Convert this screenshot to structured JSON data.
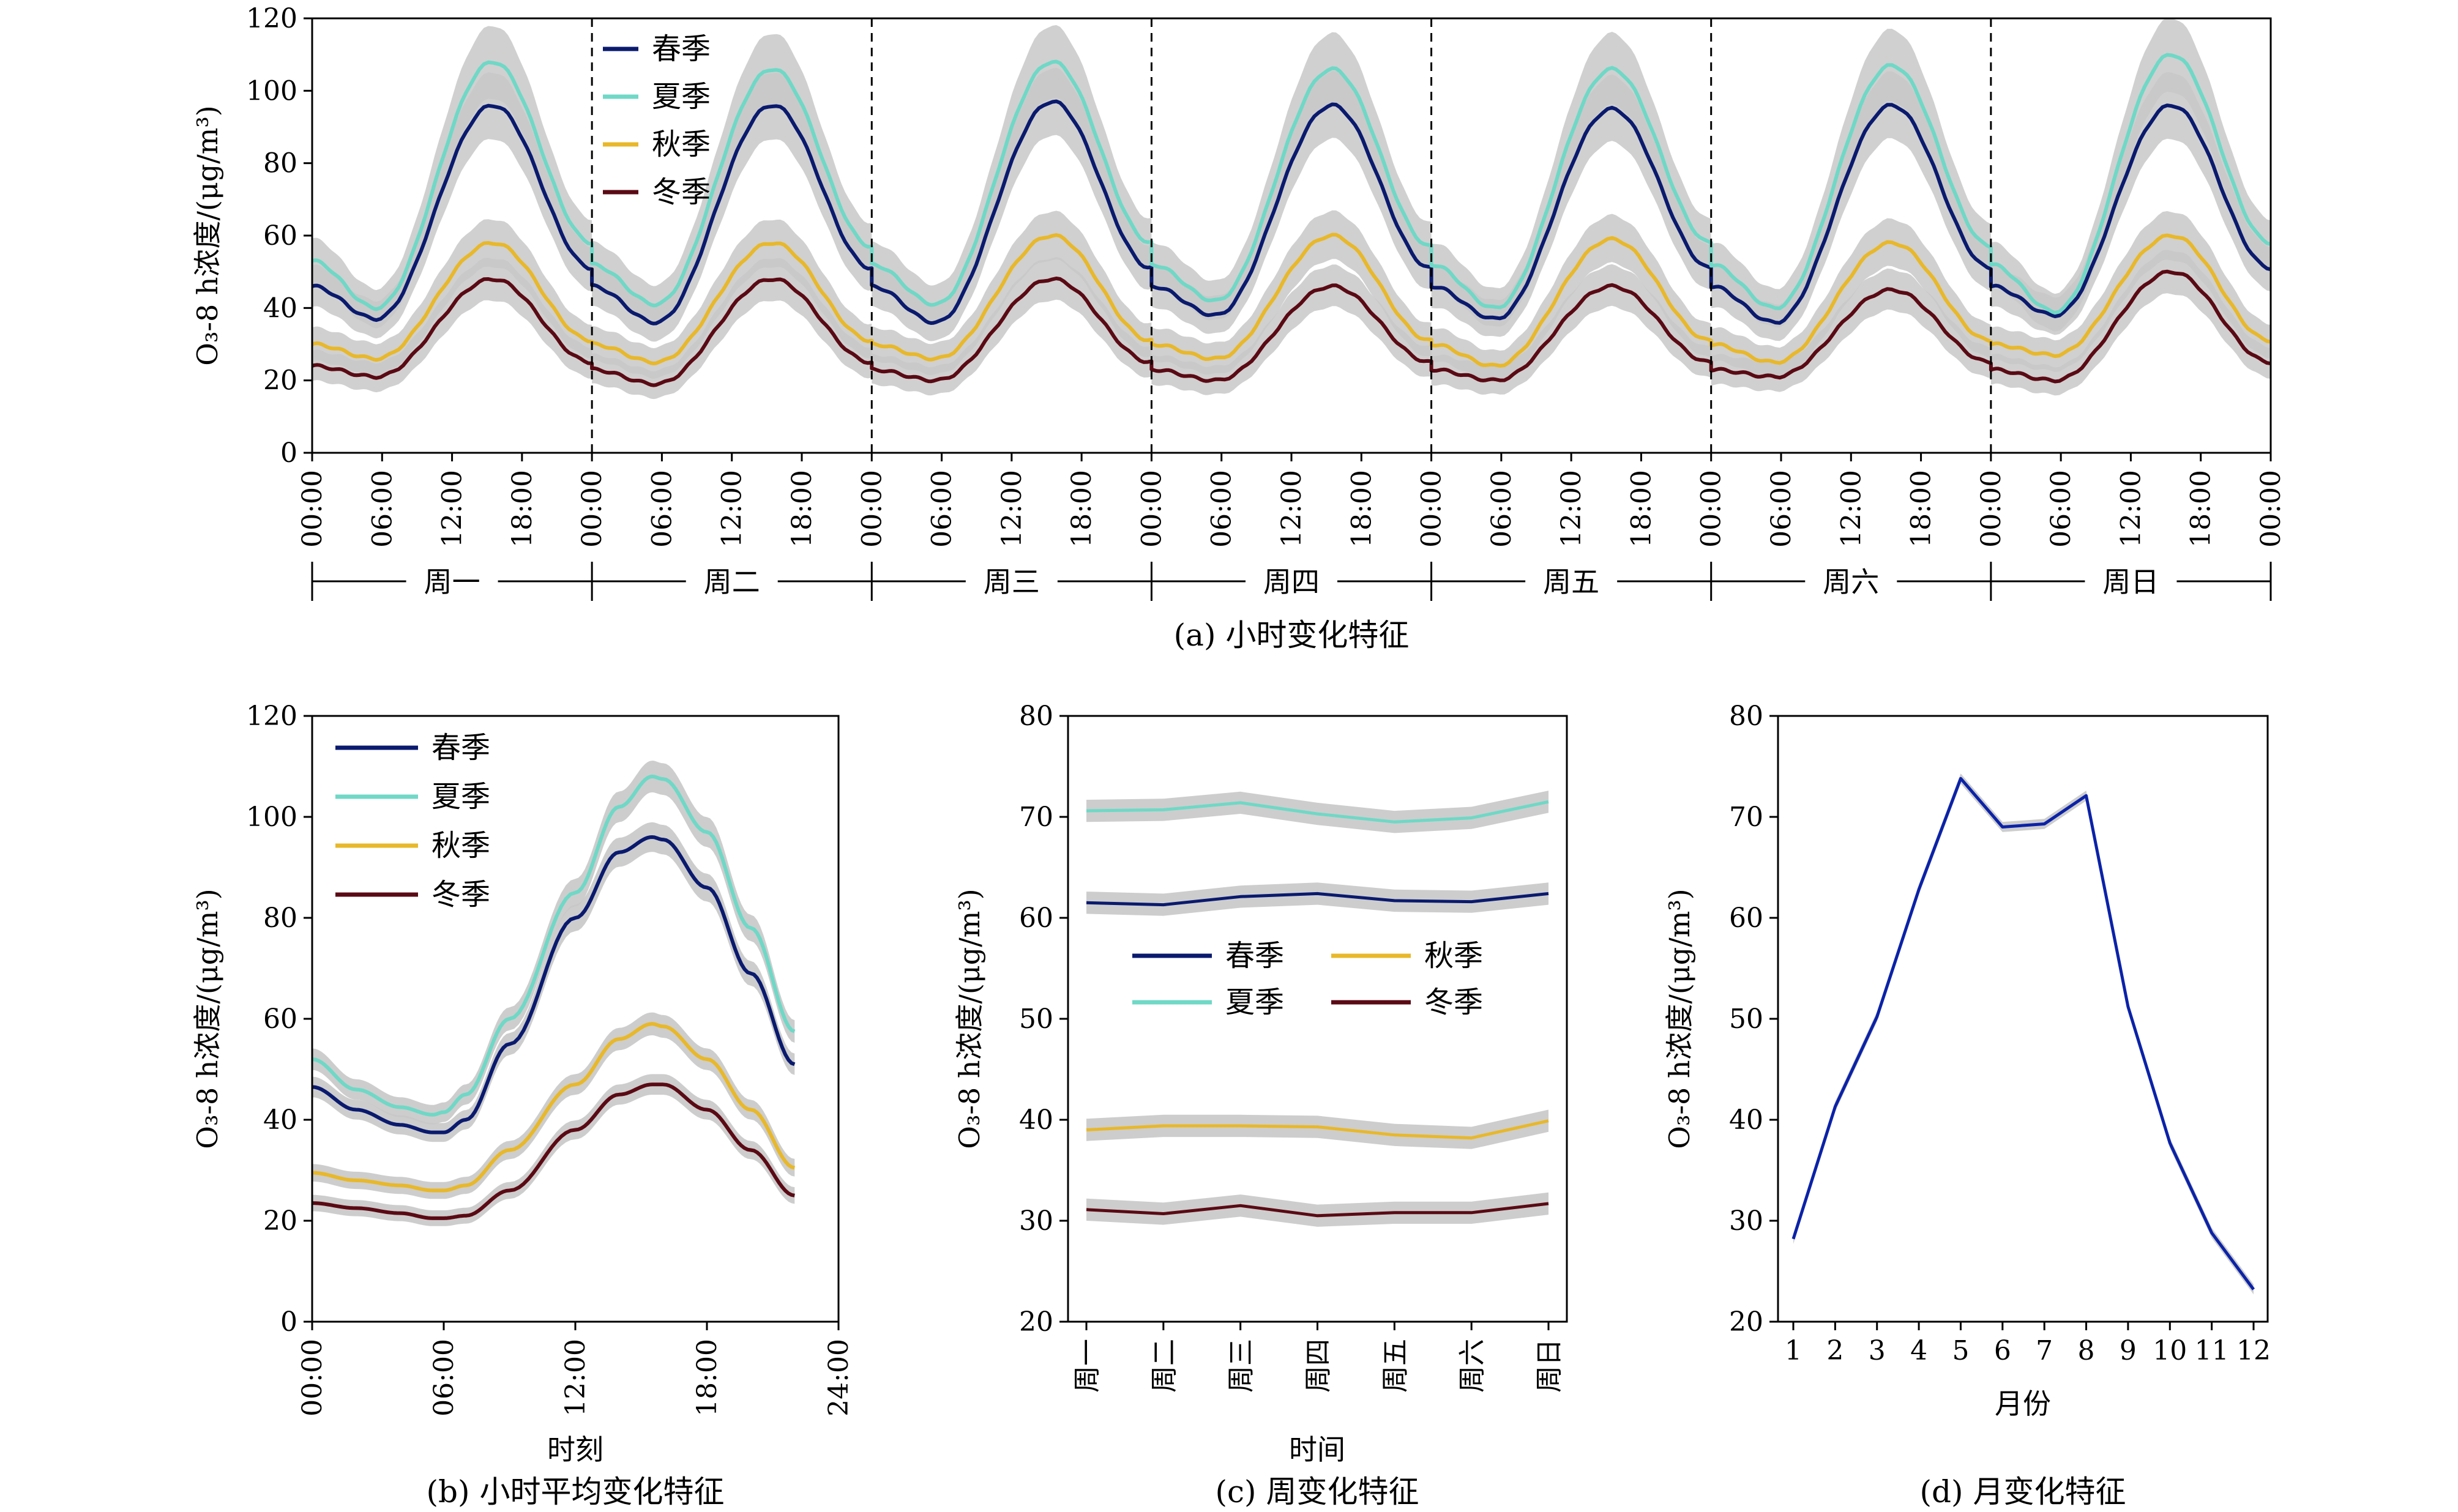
{
  "colors": {
    "spring": "#0a1a6e",
    "summer": "#6fd8c6",
    "autumn": "#e8b82a",
    "winter": "#5a0a14",
    "band": "#c8c8c8",
    "monthly": "#0b22a8"
  },
  "chart_data": [
    {
      "type": "line",
      "caption": "(a) 小时变化特征",
      "ylabel": "O₃-8 h浓度/(μg/m³)",
      "ylim": [
        0,
        120
      ],
      "yticks": [
        "0",
        "20",
        "40",
        "60",
        "80",
        "100",
        "120"
      ],
      "hour_ticks": [
        "00:00",
        "06:00",
        "12:00",
        "18:00"
      ],
      "end_tick": "00:00",
      "days": [
        "周一",
        "周二",
        "周三",
        "周四",
        "周五",
        "周六",
        "周日"
      ],
      "legend": [
        "春季",
        "夏季",
        "秋季",
        "冬季"
      ],
      "series": [
        {
          "name": "春季",
          "color_key": "spring",
          "day_params": [
            [
              96,
              37,
              46,
              51
            ],
            [
              96,
              36,
              46,
              51
            ],
            [
              97,
              36,
              46,
              51
            ],
            [
              96,
              38,
              46,
              51
            ],
            [
              95,
              37,
              46,
              51
            ],
            [
              96,
              36,
              46,
              51
            ],
            [
              96,
              38,
              46,
              51
            ]
          ]
        },
        {
          "name": "夏季",
          "color_key": "summer",
          "day_params": [
            [
              108,
              40,
              53,
              58
            ],
            [
              106,
              41,
              52,
              57
            ],
            [
              108,
              41,
              52,
              58
            ],
            [
              106,
              42,
              52,
              57
            ],
            [
              106,
              40,
              52,
              58
            ],
            [
              107,
              40,
              52,
              57
            ],
            [
              110,
              39,
              52,
              58
            ]
          ]
        },
        {
          "name": "秋季",
          "color_key": "autumn",
          "day_params": [
            [
              58,
              26,
              30,
              31
            ],
            [
              58,
              25,
              30,
              31
            ],
            [
              60,
              26,
              30,
              31
            ],
            [
              60,
              26,
              30,
              31
            ],
            [
              59,
              24,
              30,
              31
            ],
            [
              58,
              25,
              30,
              31
            ],
            [
              60,
              27,
              30,
              31
            ]
          ]
        },
        {
          "name": "冬季",
          "color_key": "winter",
          "day_params": [
            [
              48,
              21,
              24,
              25
            ],
            [
              48,
              19,
              23,
              25
            ],
            [
              48,
              20,
              23,
              25
            ],
            [
              46,
              20,
              23,
              25
            ],
            [
              46,
              20,
              23,
              25
            ],
            [
              45,
              21,
              23,
              25
            ],
            [
              50,
              20,
              23,
              25
            ]
          ]
        }
      ]
    },
    {
      "type": "line",
      "caption": "(b) 小时平均变化特征",
      "xlabel": "时刻",
      "ylabel": "O₃-8 h浓度/(μg/m³)",
      "ylim": [
        0,
        120
      ],
      "yticks": [
        "0",
        "20",
        "40",
        "60",
        "80",
        "100",
        "120"
      ],
      "xticks": [
        "00:00",
        "06:00",
        "12:00",
        "18:00",
        "24:00"
      ],
      "legend": [
        "春季",
        "夏季",
        "秋季",
        "冬季"
      ],
      "x": [
        0,
        2,
        4,
        5.5,
        6,
        7,
        9,
        12,
        14,
        15.5,
        16,
        18,
        20,
        22
      ],
      "series": [
        {
          "name": "春季",
          "color_key": "spring",
          "values": [
            46.5,
            42,
            39,
            37.5,
            37.5,
            40,
            55,
            80,
            93,
            96,
            95.5,
            86,
            69,
            51
          ]
        },
        {
          "name": "夏季",
          "color_key": "summer",
          "values": [
            52,
            46,
            42.5,
            41,
            41.5,
            45,
            60,
            85,
            102,
            108,
            107.5,
            97,
            78,
            57.5
          ]
        },
        {
          "name": "秋季",
          "color_key": "autumn",
          "values": [
            29.5,
            28,
            27,
            26,
            26,
            27,
            34,
            47,
            56,
            59,
            58.5,
            52,
            42,
            30.5
          ]
        },
        {
          "name": "冬季",
          "color_key": "winter",
          "values": [
            23.5,
            22.5,
            21.5,
            20.5,
            20.5,
            21,
            26,
            38,
            45,
            47,
            47,
            42,
            34,
            25
          ]
        }
      ]
    },
    {
      "type": "line",
      "caption": "(c) 周变化特征",
      "xlabel": "时间",
      "ylabel": "O₃-8 h浓度/(μg/m³)",
      "ylim": [
        20,
        80
      ],
      "yticks": [
        "20",
        "30",
        "40",
        "50",
        "60",
        "70",
        "80"
      ],
      "categories": [
        "周一",
        "周二",
        "周三",
        "周四",
        "周五",
        "周六",
        "周日"
      ],
      "legend": [
        "春季",
        "夏季",
        "秋季",
        "冬季"
      ],
      "series": [
        {
          "name": "春季",
          "color_key": "spring",
          "values": [
            61.5,
            61.3,
            62.1,
            62.4,
            61.7,
            61.6,
            62.4
          ]
        },
        {
          "name": "夏季",
          "color_key": "summer",
          "values": [
            70.6,
            70.7,
            71.4,
            70.3,
            69.5,
            69.9,
            71.5
          ]
        },
        {
          "name": "秋季",
          "color_key": "autumn",
          "values": [
            39.0,
            39.4,
            39.4,
            39.3,
            38.5,
            38.2,
            39.9
          ]
        },
        {
          "name": "冬季",
          "color_key": "winter",
          "values": [
            31.1,
            30.7,
            31.5,
            30.5,
            30.8,
            30.8,
            31.7
          ]
        }
      ]
    },
    {
      "type": "line",
      "caption": "(d) 月变化特征",
      "xlabel": "月份",
      "ylabel": "O₃-8 h浓度/(μg/m³)",
      "ylim": [
        20,
        80
      ],
      "yticks": [
        "20",
        "30",
        "40",
        "50",
        "60",
        "70",
        "80"
      ],
      "categories": [
        "1",
        "2",
        "3",
        "4",
        "5",
        "6",
        "7",
        "8",
        "9",
        "10",
        "11",
        "12"
      ],
      "values": [
        28.2,
        41.3,
        50.2,
        62.8,
        73.8,
        69.0,
        69.3,
        72.1,
        51.2,
        37.7,
        28.8,
        23.2
      ]
    }
  ]
}
